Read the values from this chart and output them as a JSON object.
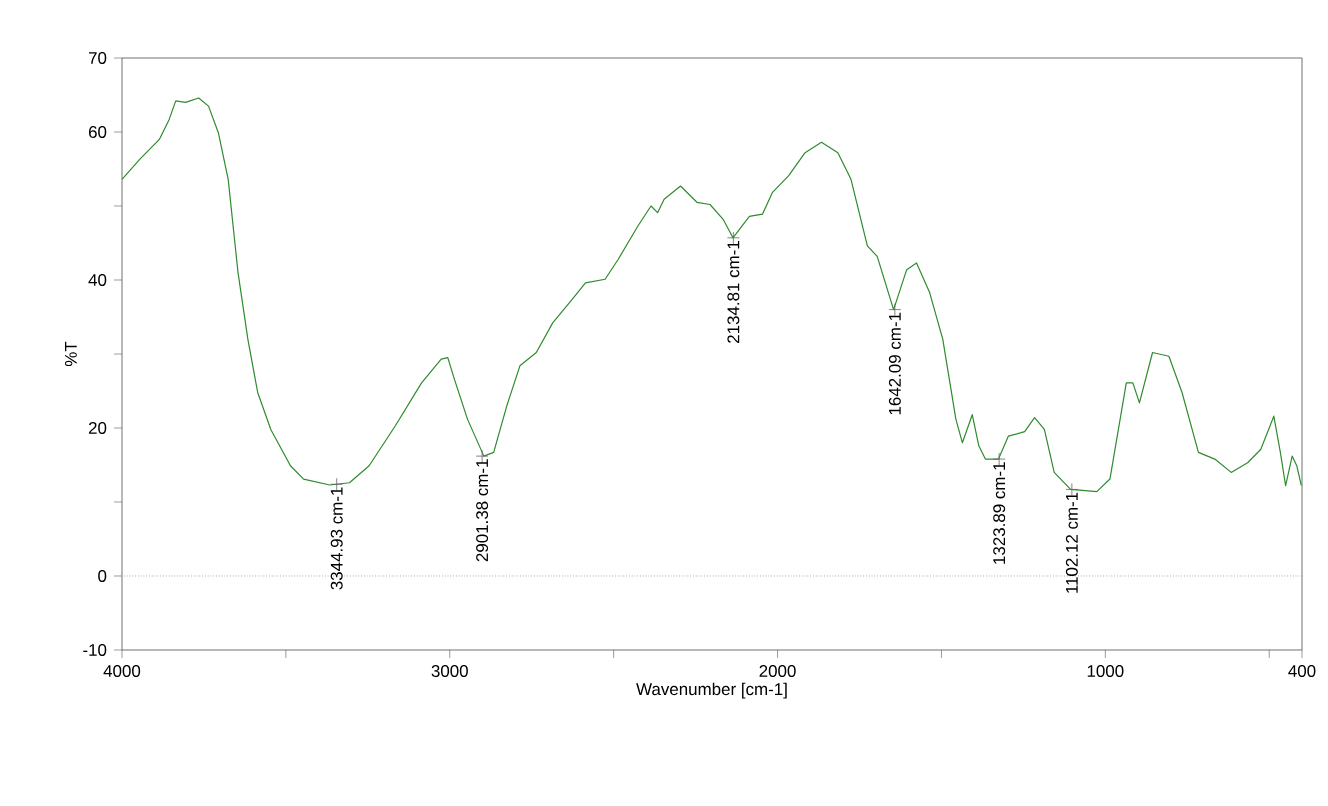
{
  "chart_data": {
    "type": "line",
    "xlabel": "Wavenumber [cm-1]",
    "ylabel": "%T",
    "xlim": [
      4000,
      400
    ],
    "ylim": [
      -10,
      70
    ],
    "xticks": [
      4000,
      {
        "value": 3500,
        "label": null
      },
      3000,
      {
        "value": 2500,
        "label": null
      },
      2000,
      {
        "value": 1500,
        "label": null
      },
      1000,
      {
        "value": 500,
        "label": null
      },
      400
    ],
    "yticks": [
      -10,
      0,
      {
        "value": 10,
        "label": null
      },
      20,
      {
        "value": 30,
        "label": null
      },
      40,
      {
        "value": 50,
        "label": null
      },
      60,
      70
    ],
    "grid": false,
    "marker": "none",
    "line_style": "solid",
    "ref_lines": [
      {
        "axis": "y",
        "value": 0,
        "color": "#808080",
        "line_style": "dotted"
      }
    ],
    "annotations": [
      {
        "text": "3344.93 cm-1",
        "x": 3344.93,
        "y": 12.4
      },
      {
        "text": "2901.38 cm-1",
        "x": 2901.38,
        "y": 16.2
      },
      {
        "text": "2134.81 cm-1",
        "x": 2134.81,
        "y": 45.7
      },
      {
        "text": "1642.09 cm-1",
        "x": 1642.09,
        "y": 36
      },
      {
        "text": "1323.89 cm-1",
        "x": 1323.89,
        "y": 15.8
      },
      {
        "text": "1102.12 cm-1",
        "x": 1102.12,
        "y": 11.7
      }
    ],
    "series": [
      {
        "color": "#2e8b2e",
        "x": [
          4000,
          3946,
          3886,
          3856,
          3836,
          3806,
          3766,
          3736,
          3706,
          3676,
          3646,
          3616,
          3586,
          3546,
          3486,
          3446,
          3366,
          3306,
          3246,
          3166,
          3086,
          3026,
          3006,
          2986,
          2946,
          2896,
          2866,
          2826,
          2786,
          2736,
          2686,
          2626,
          2586,
          2526,
          2486,
          2426,
          2386,
          2366,
          2346,
          2296,
          2246,
          2206,
          2166,
          2136,
          2086,
          2046,
          2016,
          1966,
          1916,
          1866,
          1816,
          1776,
          1726,
          1696,
          1646,
          1606,
          1576,
          1536,
          1496,
          1456,
          1436,
          1406,
          1386,
          1366,
          1326,
          1296,
          1246,
          1216,
          1186,
          1156,
          1106,
          1026,
          986,
          936,
          916,
          896,
          856,
          806,
          766,
          716,
          666,
          616,
          566,
          526,
          486,
          466,
          450,
          430,
          416,
          402
        ],
        "values": [
          53.6,
          56.3,
          59,
          61.7,
          64.2,
          64,
          64.6,
          63.5,
          59.9,
          53.6,
          41,
          32,
          24.8,
          19.8,
          14.9,
          13.1,
          12.3,
          12.6,
          14.9,
          20.3,
          26.1,
          29.3,
          29.5,
          26.6,
          21.2,
          16.2,
          16.7,
          23,
          28.4,
          30.2,
          34.2,
          37.4,
          39.6,
          40.1,
          42.8,
          47.3,
          50,
          49.1,
          50.9,
          52.7,
          50.5,
          50.2,
          48.2,
          45.7,
          48.6,
          48.9,
          51.8,
          54.1,
          57.2,
          58.6,
          57.2,
          53.6,
          44.6,
          43.2,
          36,
          41.4,
          42.3,
          38.3,
          32,
          21.2,
          18,
          21.8,
          17.6,
          15.8,
          15.8,
          18.9,
          19.5,
          21.4,
          19.8,
          14,
          11.7,
          11.4,
          13.1,
          26.1,
          26.1,
          23.4,
          30.2,
          29.7,
          24.8,
          16.7,
          15.8,
          14,
          15.3,
          17.1,
          21.6,
          16.7,
          12.2,
          16.2,
          14.9,
          12.2
        ]
      }
    ]
  }
}
